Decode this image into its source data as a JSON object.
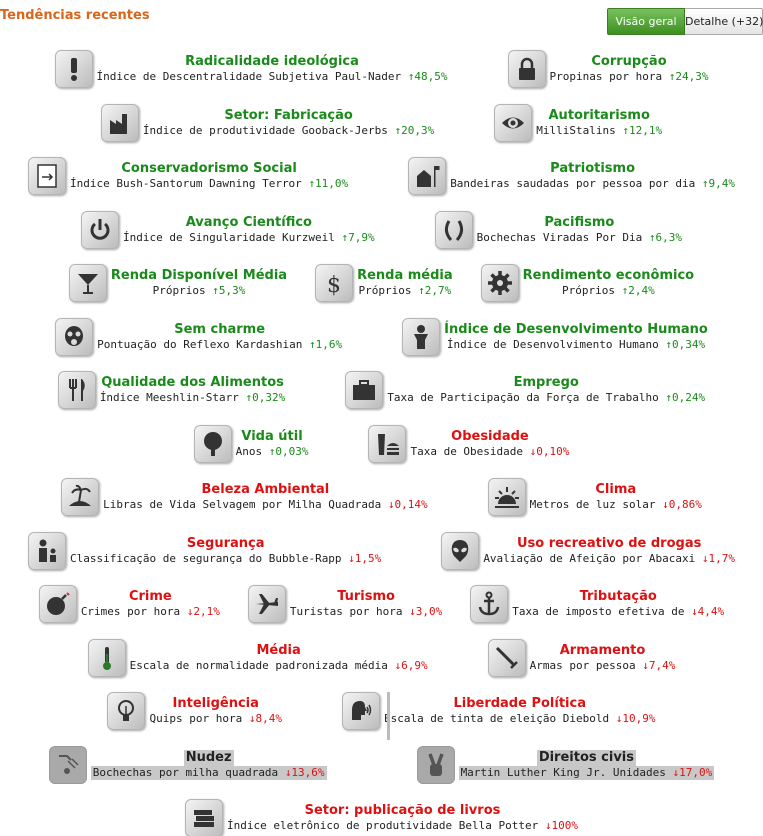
{
  "page": {
    "title": "Tendências recentes",
    "tabs": [
      {
        "label": "Visão geral",
        "active": true
      },
      {
        "label": "Detalhe (+32)",
        "active": false
      }
    ]
  },
  "colors": {
    "up": "#1a8a1a",
    "down": "#dd1111",
    "title": "#d9661a",
    "tab_active": "#4da32f"
  },
  "arrows": {
    "up": "↑",
    "down": "↓"
  },
  "rows": [
    [
      {
        "name": "Radicalidade ideológica",
        "metric": "Índice de Descentralidade Subjetiva Paul-Nader",
        "change": "↑48,5%",
        "trend": "up",
        "icon": "exclamation-icon"
      },
      {
        "name": "Corrupção",
        "metric": "Propinas por hora",
        "change": "↑24,3%",
        "trend": "up",
        "icon": "padlock-icon"
      }
    ],
    [
      {
        "name": "Setor: Fabricação",
        "metric": "Índice de produtividade Gooback-Jerbs",
        "change": "↑20,3%",
        "trend": "up",
        "icon": "factory-icon"
      },
      {
        "name": "Autoritarismo",
        "metric": "MilliStalins",
        "change": "↑12,1%",
        "trend": "up",
        "icon": "eye-icon"
      }
    ],
    [
      {
        "name": "Conservadorismo Social",
        "metric": "Índice Bush-Santorum Dawning Terror",
        "change": "↑11,0%",
        "trend": "up",
        "icon": "keep-right-sign-icon"
      },
      {
        "name": "Patriotismo",
        "metric": "Bandeiras saudadas por pessoa por dia",
        "change": "↑9,4%",
        "trend": "up",
        "icon": "house-flag-icon"
      }
    ],
    [
      {
        "name": "Avanço Científico",
        "metric": "Índice de Singularidade Kurzweil",
        "change": "↑7,9%",
        "trend": "up",
        "icon": "power-icon"
      },
      {
        "name": "Pacifismo",
        "metric": "Bochechas Viradas Por Dia",
        "change": "↑6,3%",
        "trend": "up",
        "icon": "laurel-wreath-icon"
      }
    ],
    [
      {
        "name": "Renda Disponível Média",
        "metric": "Próprios",
        "change": "↑5,3%",
        "trend": "up",
        "icon": "cocktail-glass-icon"
      },
      {
        "name": "Renda média",
        "metric": "Próprios",
        "change": "↑2,7%",
        "trend": "up",
        "icon": "dollar-icon"
      },
      {
        "name": "Rendimento econômico",
        "metric": "Próprios",
        "change": "↑2,4%",
        "trend": "up",
        "icon": "gear-icon"
      }
    ],
    [
      {
        "name": "Sem charme",
        "metric": "Pontuação do Reflexo Kardashian",
        "change": "↑1,6%",
        "trend": "up",
        "icon": "gas-mask-icon"
      },
      {
        "name": "Índice de Desenvolvimento Humano",
        "metric": "Índice de Desenvolvimento Humano",
        "change": "↑0,34%",
        "trend": "up",
        "icon": "person-icon"
      }
    ],
    [
      {
        "name": "Qualidade dos Alimentos",
        "metric": "Índice Meeshlin-Starr",
        "change": "↑0,32%",
        "trend": "up",
        "icon": "fork-knife-icon"
      },
      {
        "name": "Emprego",
        "metric": "Taxa de Participação da Força de Trabalho",
        "change": "↑0,24%",
        "trend": "up",
        "icon": "briefcase-icon"
      }
    ],
    [
      {
        "name": "Vida útil",
        "metric": "Anos",
        "change": "↑0,03%",
        "trend": "up",
        "icon": "tree-icon"
      },
      {
        "name": "Obesidade",
        "metric": "Taxa de Obesidade",
        "change": "↓0,10%",
        "trend": "down",
        "icon": "burger-soda-icon"
      }
    ],
    [
      {
        "name": "Beleza Ambiental",
        "metric": "Libras de Vida Selvagem por Milha Quadrada",
        "change": "↓0,14%",
        "trend": "down",
        "icon": "island-icon"
      },
      {
        "name": "Clima",
        "metric": "Metros de luz solar",
        "change": "↓0,86%",
        "trend": "down",
        "icon": "sunrise-icon"
      }
    ],
    [
      {
        "name": "Segurança",
        "metric": "Classificação de segurança do Bubble-Rapp",
        "change": "↓1,5%",
        "trend": "down",
        "icon": "adult-child-icon"
      },
      {
        "name": "Uso recreativo de drogas",
        "metric": "Avaliação de Afeição por Abacaxi",
        "change": "↓1,7%",
        "trend": "down",
        "icon": "alien-head-icon"
      }
    ],
    [
      {
        "name": "Crime",
        "metric": "Crimes por hora",
        "change": "↓2,1%",
        "trend": "down",
        "icon": "bomb-icon"
      },
      {
        "name": "Turismo",
        "metric": "Turistas por hora",
        "change": "↓3,0%",
        "trend": "down",
        "icon": "airplane-icon"
      },
      {
        "name": "Tributação",
        "metric": "Taxa de imposto efetiva de",
        "change": "↓4,4%",
        "trend": "down",
        "icon": "anchor-icon"
      }
    ],
    [
      {
        "name": "Média",
        "metric": "Escala de normalidade padronizada média",
        "change": "↓6,9%",
        "trend": "down",
        "icon": "thermometer-icon"
      },
      {
        "name": "Armamento",
        "metric": "Armas por pessoa",
        "change": "↓7,4%",
        "trend": "down",
        "icon": "sword-icon"
      }
    ],
    [
      {
        "name": "Inteligência",
        "metric": "Quips por hora",
        "change": "↓8,4%",
        "trend": "down",
        "icon": "light-bulb-icon"
      },
      {
        "name": "Liberdade Política",
        "metric": "Escala de tinta de eleição Diebold",
        "change": "↓10,9%",
        "trend": "down",
        "icon": "speaking-head-icon"
      }
    ],
    [
      {
        "name": "Nudez",
        "metric": "Bochechas por milha quadrada",
        "change": "↓13,6%",
        "trend": "down",
        "icon": "shower-icon",
        "dim": true
      },
      {
        "name": "Direitos civis",
        "metric": "Martin Luther King Jr. Unidades",
        "change": "↓17,0%",
        "trend": "down",
        "icon": "peace-hand-icon",
        "dim": true
      }
    ],
    [
      {
        "name": "Setor: publicação de livros",
        "metric": "Índice eletrônico de produtividade Bella Potter",
        "change": "↓100%",
        "trend": "down",
        "icon": "books-icon"
      }
    ]
  ]
}
